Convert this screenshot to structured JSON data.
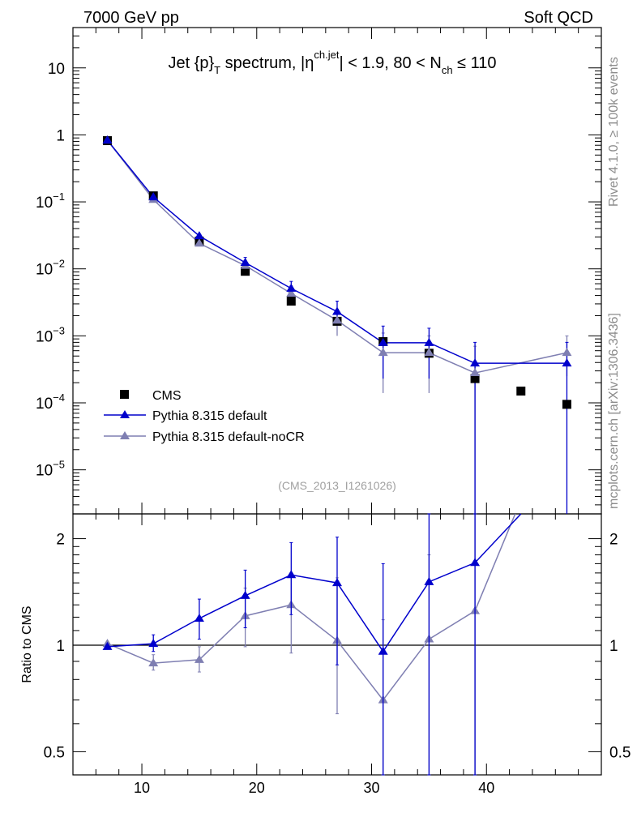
{
  "header": {
    "left": "7000 GeV pp",
    "right": "Soft QCD"
  },
  "side_labels": {
    "upper": "Rivet 4.1.0, ≥ 100k events",
    "lower": "mcplots.cern.ch [arXiv:1306.3436]"
  },
  "title": {
    "t1": "Jet {p}",
    "t1_sub": "T",
    "t2": " spectrum, |η",
    "t2_sup": "ch.jet",
    "t3": "| < 1.9, 80 < N",
    "t3_sub": "ch",
    "t4": " ≤ 110"
  },
  "analysis_id": "(CMS_2013_I1261026)",
  "colors": {
    "cms": "#000000",
    "default": "#0000cc",
    "nocr": "#7f7fb2"
  },
  "chart_data": [
    {
      "type": "scatter",
      "panel": "main",
      "yscale": "log",
      "xlim": [
        4,
        50
      ],
      "ylim": [
        2.2e-06,
        40
      ],
      "x": [
        7,
        11,
        15,
        19,
        23,
        27,
        31,
        35,
        39,
        43,
        47
      ],
      "yticks": [
        1e-05,
        0.0001,
        0.001,
        0.01,
        0.1,
        1,
        10
      ],
      "ytick_labels": [
        {
          "base": "10",
          "exp": "−5"
        },
        {
          "base": "10",
          "exp": "−4"
        },
        {
          "base": "10",
          "exp": "−3"
        },
        {
          "base": "10",
          "exp": "−2"
        },
        {
          "base": "10",
          "exp": "−1"
        },
        {
          "base": "1",
          "exp": ""
        },
        {
          "base": "10",
          "exp": ""
        }
      ],
      "legend": [
        "CMS",
        "Pythia 8.315 default",
        "Pythia 8.315 default-noCR"
      ],
      "legend_placement": "bottom-left",
      "series": [
        {
          "name": "CMS",
          "style": "marker-square",
          "values": [
            0.82,
            0.123,
            0.026,
            0.0092,
            0.0033,
            0.00165,
            0.00082,
            0.00055,
            0.00023,
            0.00015,
            9.5e-05
          ]
        },
        {
          "name": "Pythia 8.315 default",
          "style": "line-triangle",
          "values": [
            0.83,
            0.118,
            0.031,
            0.0124,
            0.0051,
            0.0023,
            0.00079,
            0.00079,
            0.00039,
            null,
            0.00039
          ],
          "err_up": [
            0.84,
            0.126,
            0.033,
            0.0148,
            0.0065,
            0.0033,
            0.0014,
            0.0013,
            0.0008,
            null,
            0.0008
          ],
          "err_down": [
            0.82,
            0.11,
            0.029,
            0.0103,
            0.0039,
            0.0015,
            0.00023,
            0.00023,
            null,
            null,
            null
          ]
        },
        {
          "name": "Pythia 8.315 default-noCR",
          "style": "line-triangle",
          "values": [
            0.83,
            0.108,
            0.024,
            0.0112,
            0.0043,
            0.0017,
            0.00056,
            0.00056,
            0.00028,
            null,
            0.00056
          ],
          "err_up": [
            0.84,
            0.115,
            0.026,
            0.0135,
            0.0056,
            0.0025,
            0.0011,
            0.001,
            0.0007,
            null,
            0.001
          ],
          "err_down": [
            0.82,
            0.1,
            0.022,
            0.0092,
            0.0033,
            0.001,
            0.00014,
            0.00014,
            null,
            null,
            0.00025
          ]
        }
      ]
    },
    {
      "type": "line",
      "panel": "ratio",
      "ylabel": "Ratio to CMS",
      "yscale": "log",
      "xlim": [
        4,
        50
      ],
      "ylim": [
        0.43,
        2.35
      ],
      "yticks": [
        0.5,
        1,
        2
      ],
      "ytick_labels": [
        "0.5",
        "1",
        "2"
      ],
      "xticks": [
        10,
        20,
        30,
        40
      ],
      "xtick_labels": [
        "10",
        "20",
        "30",
        "40"
      ],
      "reference_line": 1,
      "series": [
        {
          "name": "Pythia 8.315 default",
          "x": [
            7,
            11,
            15,
            19,
            23,
            27,
            31,
            35,
            39,
            43
          ],
          "values": [
            0.99,
            1.01,
            1.19,
            1.38,
            1.58,
            1.5,
            0.96,
            1.51,
            1.71,
            2.35
          ],
          "err_up": [
            1.0,
            1.07,
            1.35,
            1.63,
            1.95,
            2.02,
            1.7,
            2.35,
            2.35,
            null
          ],
          "err_down": [
            0.98,
            0.96,
            1.04,
            1.12,
            1.22,
            0.88,
            0.28,
            0.37,
            0.34,
            null
          ]
        },
        {
          "name": "Pythia 8.315 default-noCR",
          "x": [
            7,
            11,
            15,
            19,
            23,
            27,
            31,
            35,
            39,
            42.5
          ],
          "values": [
            1.01,
            0.89,
            0.91,
            1.21,
            1.3,
            1.03,
            0.7,
            1.04,
            1.25,
            2.35
          ],
          "err_up": [
            1.02,
            0.94,
            0.99,
            1.45,
            1.6,
            1.55,
            1.18,
            1.8,
            2.35,
            null
          ],
          "err_down": [
            1.0,
            0.85,
            0.84,
            0.99,
            0.95,
            0.64,
            0.28,
            0.28,
            0.28,
            null
          ]
        }
      ]
    }
  ]
}
